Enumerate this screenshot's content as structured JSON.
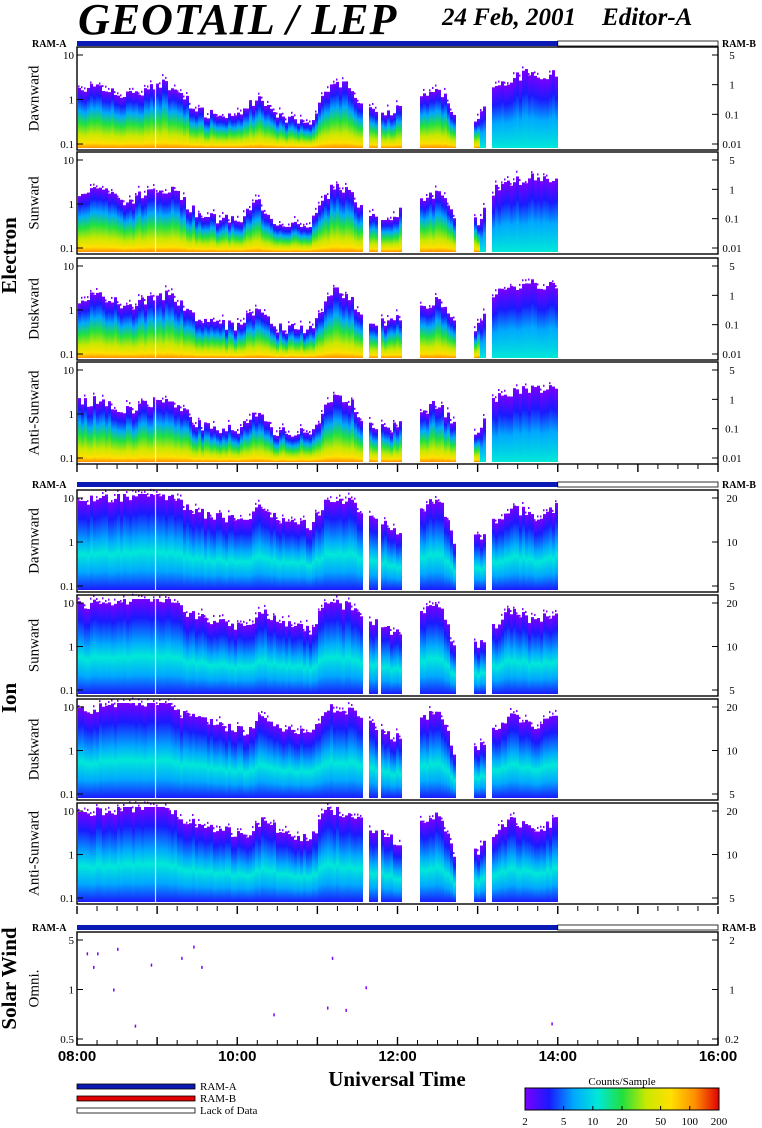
{
  "header": {
    "title": "GEOTAIL / LEP",
    "date": "24 Feb, 2001",
    "editor": "Editor-A"
  },
  "mode_labels": {
    "left": "RAM-A",
    "right": "RAM-B"
  },
  "colors": {
    "ram_a": "#0a1ab4",
    "ram_b": "#e00000",
    "lack": "#ffffff",
    "spectrogram": [
      "#7a00ff",
      "#1a1aff",
      "#00a8ff",
      "#00e8d8",
      "#20e040",
      "#c8e800",
      "#ffe000",
      "#ff9000",
      "#e00000"
    ]
  },
  "chart_data": {
    "type": "heatmap",
    "xlabel": "Universal Time",
    "x_ticks": [
      "08:00",
      "10:00",
      "12:00",
      "14:00",
      "16:00"
    ],
    "x_range_hours": [
      8,
      16
    ],
    "data_end_hour": 14.0,
    "groups": [
      {
        "name": "Electron",
        "panels": [
          {
            "name": "Dawnward",
            "left_ticks": [
              "10",
              "1",
              "0.1"
            ],
            "right_ticks": [
              "5",
              "1",
              "0.1",
              "0.01"
            ]
          },
          {
            "name": "Sunward",
            "left_ticks": [
              "10",
              "1",
              "0.1"
            ],
            "right_ticks": [
              "5",
              "1",
              "0.1",
              "0.01"
            ]
          },
          {
            "name": "Duskward",
            "left_ticks": [
              "10",
              "1",
              "0.1"
            ],
            "right_ticks": [
              "5",
              "1",
              "0.1",
              "0.01"
            ]
          },
          {
            "name": "Anti-Sunward",
            "left_ticks": [
              "10",
              "1",
              "0.1"
            ],
            "right_ticks": [
              "5",
              "1",
              "0.1",
              "0.01"
            ]
          }
        ]
      },
      {
        "name": "Ion",
        "panels": [
          {
            "name": "Dawnward",
            "left_ticks": [
              "10",
              "1",
              "0.1"
            ],
            "right_ticks": [
              "20",
              "10",
              "5"
            ]
          },
          {
            "name": "Sunward",
            "left_ticks": [
              "10",
              "1",
              "0.1"
            ],
            "right_ticks": [
              "20",
              "10",
              "5"
            ]
          },
          {
            "name": "Duskward",
            "left_ticks": [
              "10",
              "1",
              "0.1"
            ],
            "right_ticks": [
              "20",
              "10",
              "5"
            ]
          },
          {
            "name": "Anti-Sunward",
            "left_ticks": [
              "10",
              "1",
              "0.1"
            ],
            "right_ticks": [
              "20",
              "10",
              "5"
            ]
          }
        ]
      },
      {
        "name": "Solar Wind",
        "panels": [
          {
            "name": "Omni.",
            "left_ticks": [
              "5",
              "1",
              "0.5"
            ],
            "right_ticks": [
              "2",
              "1",
              "0.2"
            ]
          }
        ]
      }
    ],
    "colorbar": {
      "title": "Counts/Sample",
      "ticks": [
        "2",
        "5",
        "10",
        "20",
        "50",
        "100",
        "200"
      ]
    }
  },
  "legend": [
    {
      "label": "RAM-A",
      "color": "#0a1ab4"
    },
    {
      "label": "RAM-B",
      "color": "#e00000"
    },
    {
      "label": "Lack of Data",
      "color": "#ffffff"
    }
  ]
}
